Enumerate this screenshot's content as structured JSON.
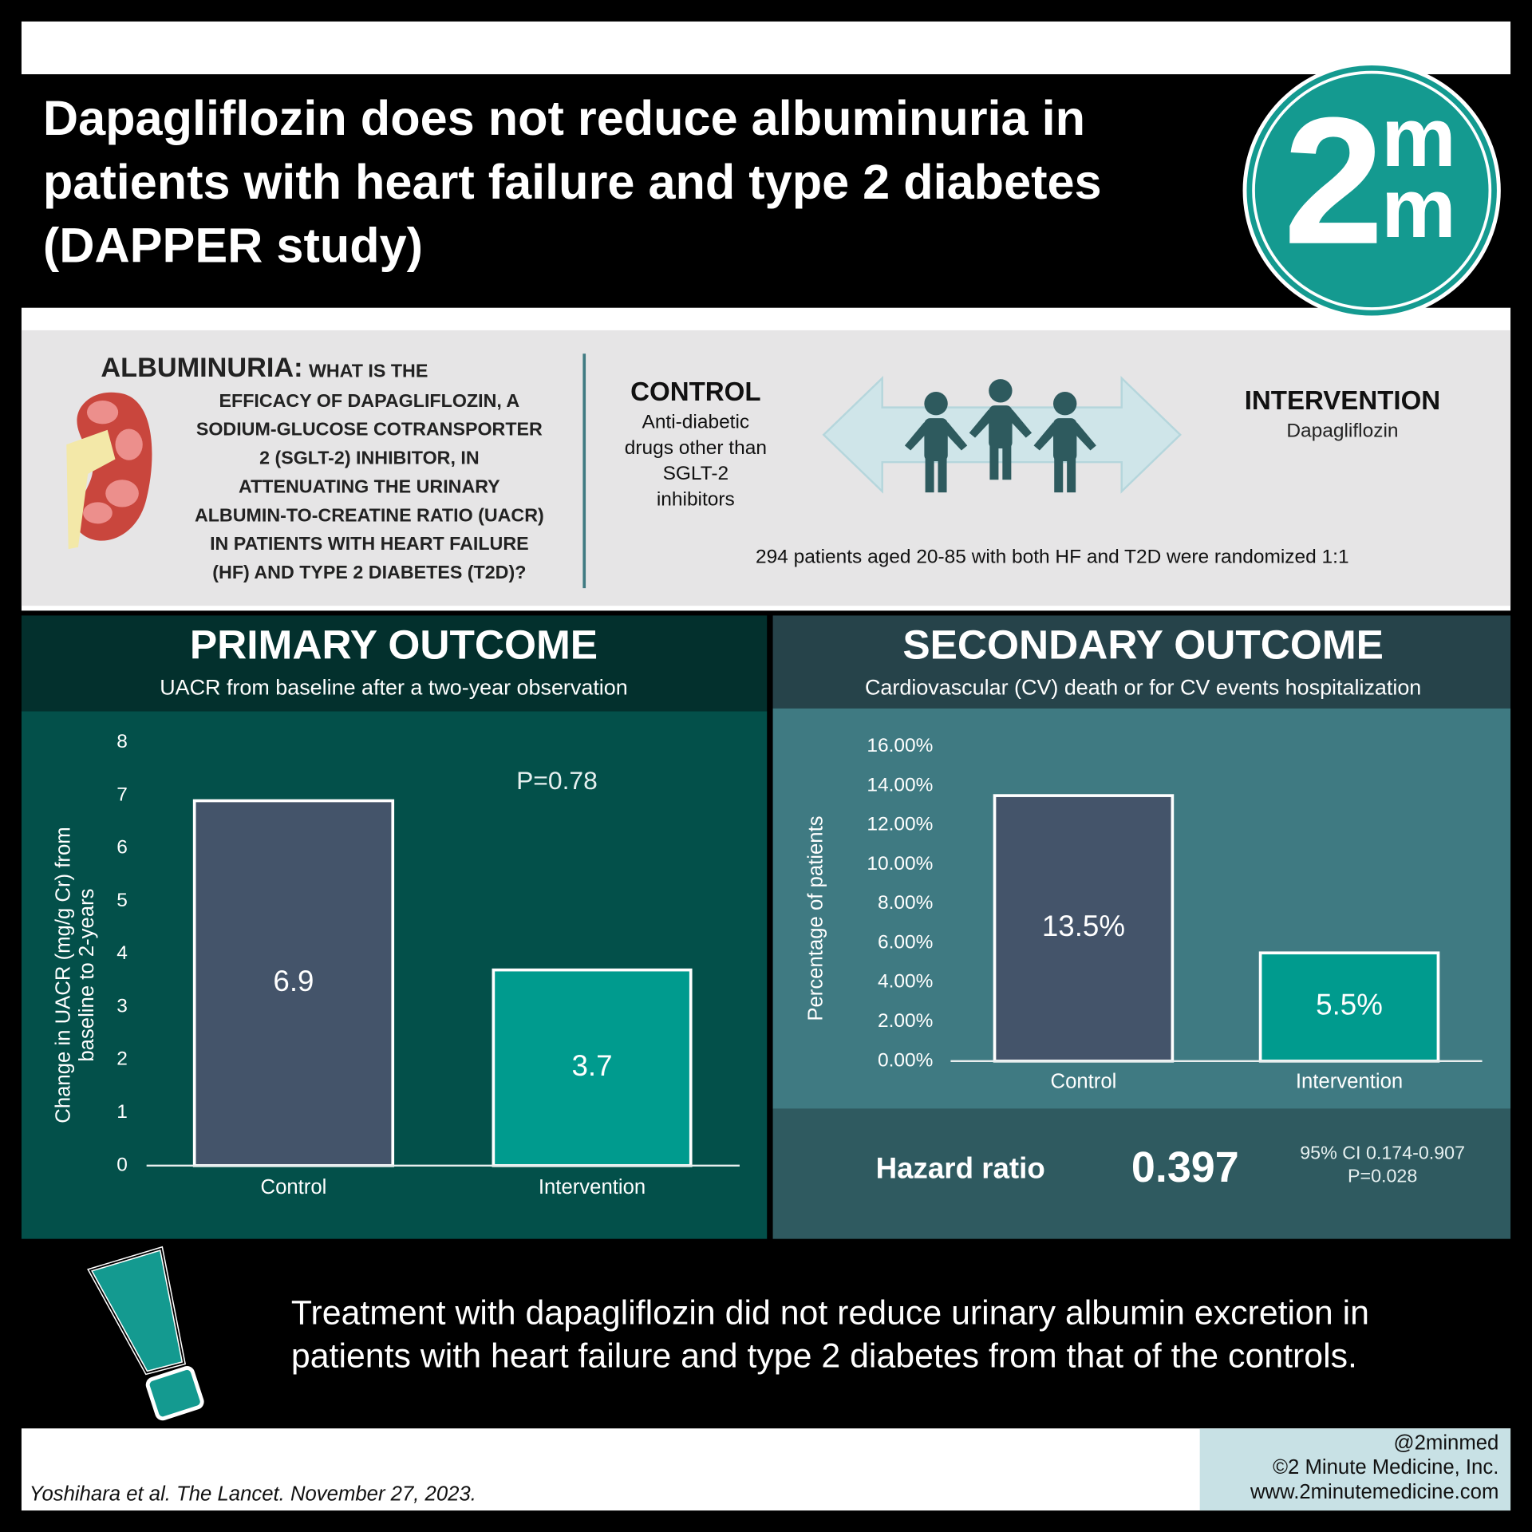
{
  "header": {
    "title_lines": [
      "Dapagliflozin does not reduce albuminuria in",
      "patients with heart failure and type 2 diabetes",
      "(DAPPER study)"
    ],
    "logo": [
      "2",
      "m",
      "m"
    ]
  },
  "question": {
    "lead": "ALBUMINURIA:",
    "lines": [
      "WHAT IS THE",
      "EFFICACY OF DAPAGLIFLOZIN, A",
      "SODIUM-GLUCOSE COTRANSPORTER",
      "2 (SGLT-2) INHIBITOR, IN",
      "ATTENUATING THE URINARY",
      "ALBUMIN-TO-CREATINE RATIO (UACR)",
      "IN PATIENTS WITH HEART FAILURE",
      "(HF) AND TYPE 2 DIABETES (T2D)?"
    ]
  },
  "design": {
    "control": {
      "title": "CONTROL",
      "lines": [
        "Anti-diabetic",
        "drugs other than",
        "SGLT-2",
        "inhibitors"
      ]
    },
    "intervention": {
      "title": "INTERVENTION",
      "lines": [
        "Dapagliflozin"
      ]
    },
    "note": "294 patients aged 20-85 with both HF and T2D were randomized 1:1"
  },
  "chart_data": [
    {
      "type": "bar",
      "title": "PRIMARY OUTCOME",
      "subtitle": "UACR from baseline after a two-year observation",
      "ylabel": [
        "Change in UACR (mg/g Cr) from",
        "baseline to 2-years"
      ],
      "annotation": "P=0.78",
      "categories": [
        "Control",
        "Intervention"
      ],
      "values": [
        6.9,
        3.7
      ],
      "colors": [
        "#44546a",
        "#009b8e"
      ],
      "ylim": [
        0,
        8
      ],
      "yticks": [
        0,
        1,
        2,
        3,
        4,
        5,
        6,
        7,
        8
      ]
    },
    {
      "type": "bar",
      "title": "SECONDARY OUTCOME",
      "subtitle": "Cardiovascular (CV) death or for CV events hospitalization",
      "ylabel": [
        "Percentage of patients"
      ],
      "categories": [
        "Control",
        "Intervention"
      ],
      "values": [
        13.5,
        5.5
      ],
      "value_labels": [
        "13.5%",
        "5.5%"
      ],
      "colors": [
        "#44546a",
        "#009b8e"
      ],
      "ylim": [
        0,
        16
      ],
      "yticks": [
        {
          "value": 0,
          "label": "0.00%"
        },
        {
          "value": 2,
          "label": "2.00%"
        },
        {
          "value": 4,
          "label": "4.00%"
        },
        {
          "value": 6,
          "label": "6.00%"
        },
        {
          "value": 8,
          "label": "8.00%"
        },
        {
          "value": 10,
          "label": "10.00%"
        },
        {
          "value": 12,
          "label": "12.00%"
        },
        {
          "value": 14,
          "label": "14.00%"
        },
        {
          "value": 16,
          "label": "16.00%"
        }
      ]
    }
  ],
  "hazard": {
    "label": "Hazard ratio",
    "value": "0.397",
    "ci": "95% CI 0.174-0.907",
    "p": "P=0.028"
  },
  "conclusion": [
    "Treatment with dapagliflozin did not reduce urinary albumin excretion in",
    "patients with heart failure and type 2 diabetes from that of the controls."
  ],
  "footer": {
    "citation": "Yoshihara et al. The Lancet. November 27, 2023.",
    "credits": [
      "@2minmed",
      "©2 Minute Medicine, Inc.",
      "www.2minutemedicine.com"
    ]
  }
}
